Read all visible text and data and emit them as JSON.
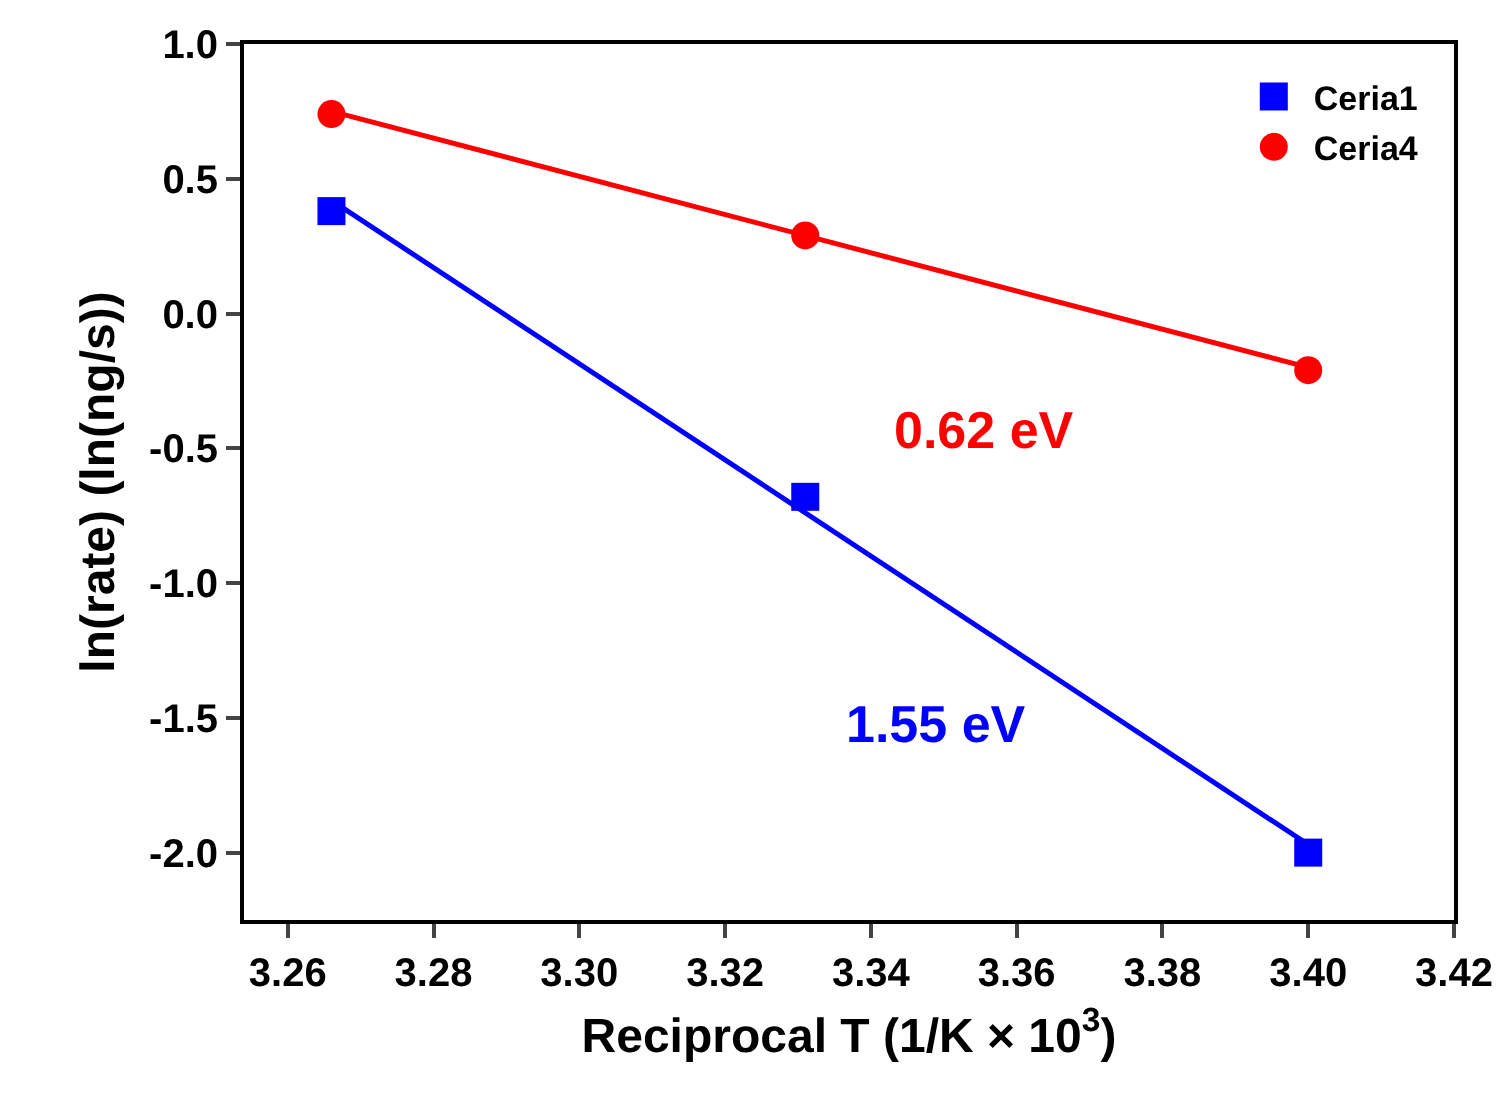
{
  "chart_data": {
    "type": "scatter",
    "xlabel": "Reciprocal T (1/K × 10$^{3}$)",
    "ylabel": "ln(rate) (ln(ng/s))",
    "xlim": [
      3.254,
      3.42
    ],
    "ylim": [
      -2.25,
      1.0
    ],
    "xticks": [
      {
        "value": 3.26,
        "label": "3.26"
      },
      {
        "value": 3.28,
        "label": "3.28"
      },
      {
        "value": 3.3,
        "label": "3.30"
      },
      {
        "value": 3.32,
        "label": "3.32"
      },
      {
        "value": 3.34,
        "label": "3.34"
      },
      {
        "value": 3.36,
        "label": "3.36"
      },
      {
        "value": 3.38,
        "label": "3.38"
      },
      {
        "value": 3.4,
        "label": "3.40"
      },
      {
        "value": 3.42,
        "label": "3.42"
      }
    ],
    "yticks": [
      {
        "value": 1.0,
        "label": "1.0"
      },
      {
        "value": 0.5,
        "label": "0.5"
      },
      {
        "value": 0,
        "label": "0.0"
      },
      {
        "value": -0.5,
        "label": "-0.5"
      },
      {
        "value": -1.0,
        "label": "-1.0"
      },
      {
        "value": -1.5,
        "label": "-1.5"
      },
      {
        "value": -2.0,
        "label": "-2.0"
      }
    ],
    "grid": false,
    "legend": "top right",
    "series": [
      {
        "name": "Ceria1",
        "type": "scatter",
        "marker": "square",
        "color": "#0000ff",
        "x": [
          3.266,
          3.331,
          3.4
        ],
        "values": [
          0.38,
          -0.68,
          -2.0
        ]
      },
      {
        "name": "Ceria4",
        "type": "scatter",
        "marker": "circle",
        "color": "#ff0000",
        "x": [
          3.266,
          3.331,
          3.4
        ],
        "values": [
          0.74,
          0.29,
          -0.21
        ]
      },
      {
        "type": "line",
        "color": "#0000ff",
        "x": [
          3.266,
          3.4
        ],
        "values": [
          0.42,
          -1.97
        ]
      },
      {
        "type": "line",
        "color": "#ff0000",
        "x": [
          3.266,
          3.4
        ],
        "values": [
          0.75,
          -0.2
        ]
      }
    ],
    "annotations": [
      "1.55 eV",
      "0.62 eV"
    ]
  }
}
